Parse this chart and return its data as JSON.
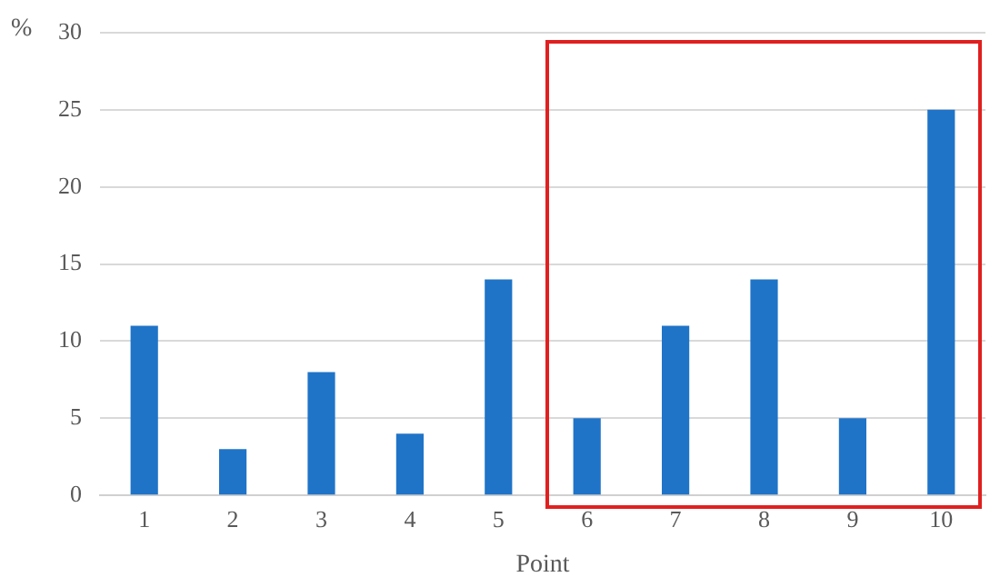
{
  "chart_data": {
    "type": "bar",
    "xlabel": "Point",
    "ylabel": "%",
    "categories": [
      "1",
      "2",
      "3",
      "4",
      "5",
      "6",
      "7",
      "8",
      "9",
      "10"
    ],
    "values": [
      11,
      3,
      8,
      4,
      14,
      5,
      11,
      14,
      5,
      25
    ],
    "color": "#1f74c8",
    "ylim": [
      0,
      30
    ],
    "yticks": [
      0,
      5,
      10,
      15,
      20,
      25,
      30
    ],
    "grid": "y"
  }
}
